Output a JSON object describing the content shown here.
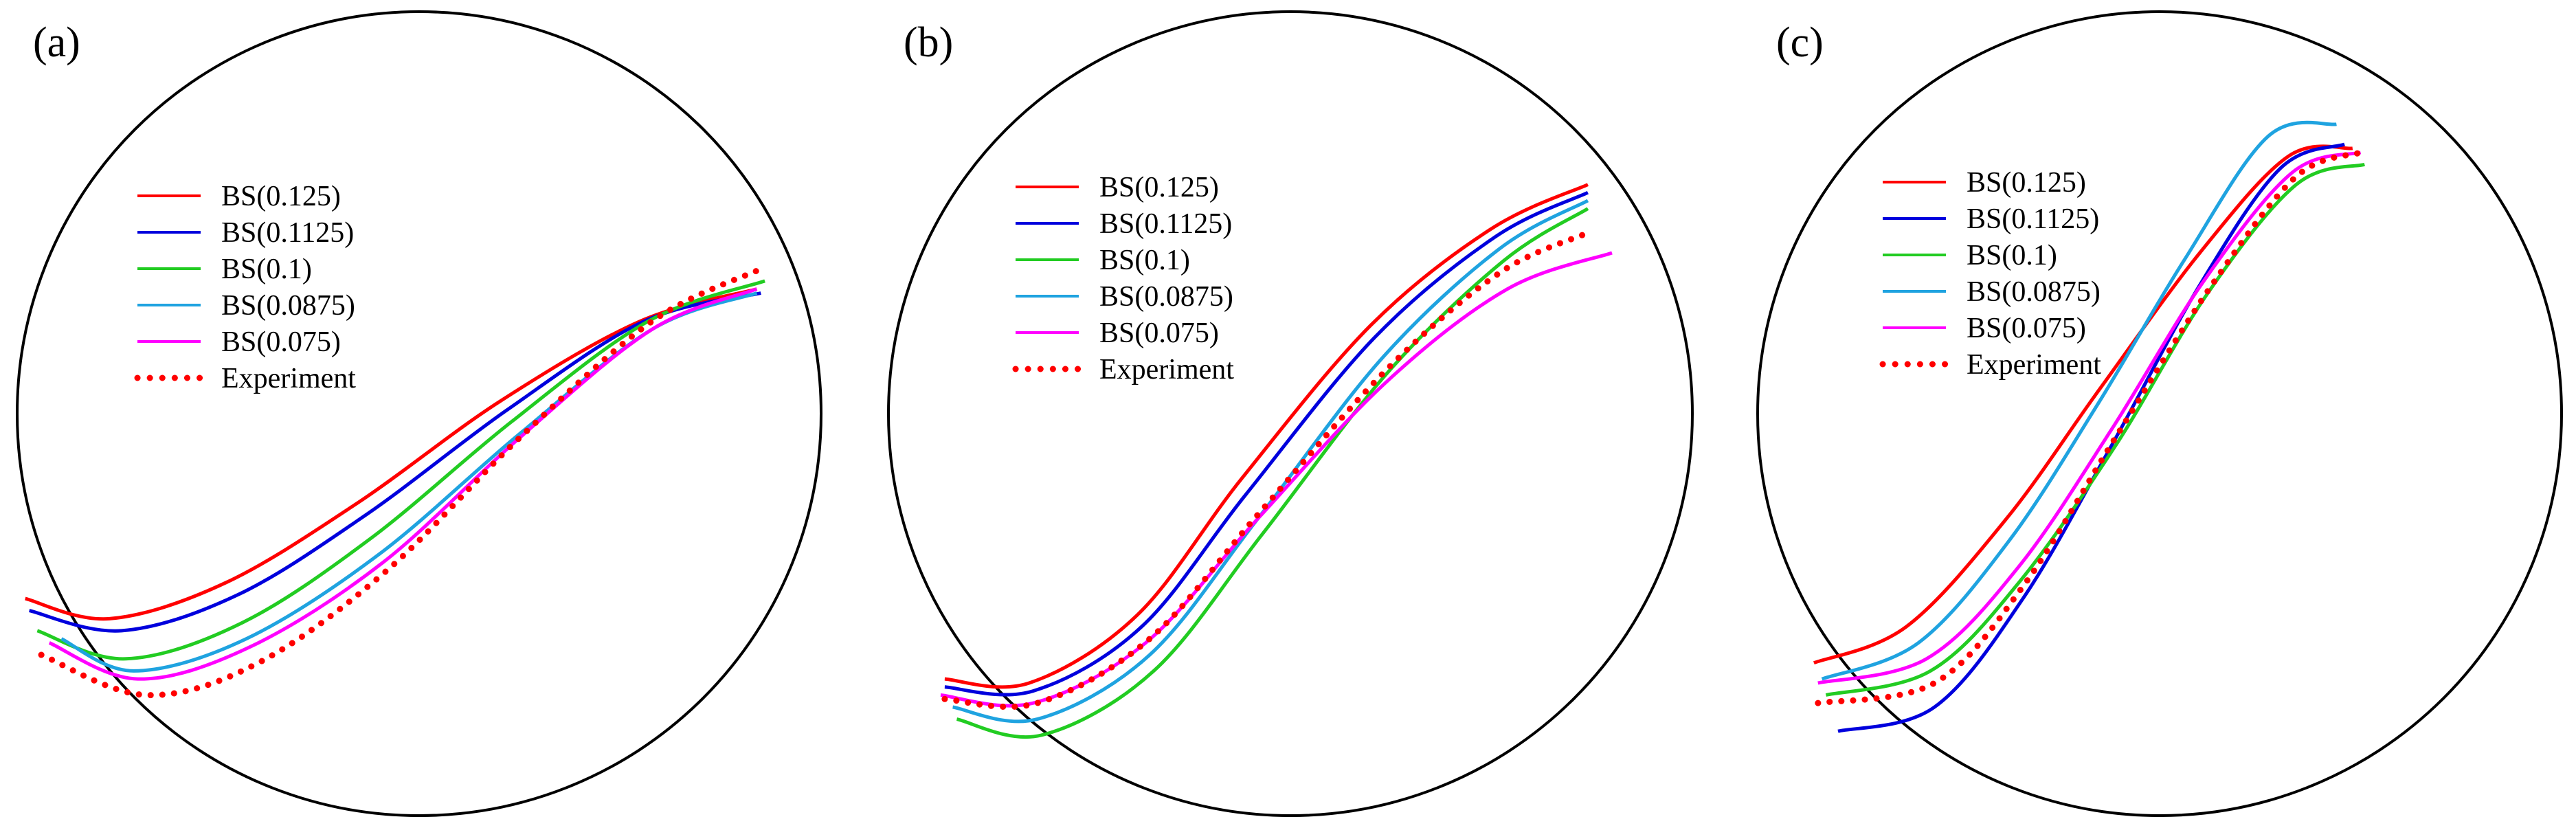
{
  "chart_data": [
    {
      "type": "line",
      "panel_label": "(a)",
      "legend": [
        "BS(0.125)",
        "BS(0.1125)",
        "BS(0.1)",
        "BS(0.0875)",
        "BS(0.075)",
        "Experiment"
      ],
      "series": [
        {
          "name": "BS(0.125)",
          "color": "#ff0000",
          "style": "solid",
          "points": [
            [
              -0.98,
              -0.46
            ],
            [
              -0.77,
              -0.51
            ],
            [
              -0.48,
              -0.42
            ],
            [
              -0.15,
              -0.22
            ],
            [
              0.2,
              0.03
            ],
            [
              0.55,
              0.23
            ],
            [
              0.84,
              0.31
            ]
          ]
        },
        {
          "name": "BS(0.1125)",
          "color": "#0000dd",
          "style": "solid",
          "points": [
            [
              -0.97,
              -0.49
            ],
            [
              -0.74,
              -0.54
            ],
            [
              -0.45,
              -0.45
            ],
            [
              -0.13,
              -0.25
            ],
            [
              0.22,
              0.01
            ],
            [
              0.56,
              0.23
            ],
            [
              0.85,
              0.3
            ]
          ]
        },
        {
          "name": "BS(0.1)",
          "color": "#22cc22",
          "style": "solid",
          "points": [
            [
              -0.95,
              -0.54
            ],
            [
              -0.73,
              -0.61
            ],
            [
              -0.44,
              -0.52
            ],
            [
              -0.12,
              -0.31
            ],
            [
              0.23,
              -0.02
            ],
            [
              0.57,
              0.23
            ],
            [
              0.86,
              0.33
            ]
          ]
        },
        {
          "name": "BS(0.0875)",
          "color": "#1fa3e0",
          "style": "solid",
          "points": [
            [
              -0.89,
              -0.56
            ],
            [
              -0.71,
              -0.64
            ],
            [
              -0.43,
              -0.56
            ],
            [
              -0.1,
              -0.35
            ],
            [
              0.25,
              -0.05
            ],
            [
              0.58,
              0.21
            ],
            [
              0.84,
              0.3
            ]
          ]
        },
        {
          "name": "BS(0.075)",
          "color": "#ff00ff",
          "style": "solid",
          "points": [
            [
              -0.92,
              -0.57
            ],
            [
              -0.7,
              -0.66
            ],
            [
              -0.42,
              -0.58
            ],
            [
              -0.09,
              -0.37
            ],
            [
              0.25,
              -0.06
            ],
            [
              0.58,
              0.21
            ],
            [
              0.84,
              0.31
            ]
          ]
        },
        {
          "name": "Experiment",
          "color": "#ff0000",
          "style": "dotted",
          "points": [
            [
              -0.94,
              -0.6
            ],
            [
              -0.68,
              -0.7
            ],
            [
              -0.4,
              -0.62
            ],
            [
              -0.08,
              -0.39
            ],
            [
              0.25,
              -0.06
            ],
            [
              0.58,
              0.23
            ],
            [
              0.85,
              0.36
            ]
          ]
        }
      ]
    },
    {
      "type": "line",
      "panel_label": "(b)",
      "legend": [
        "BS(0.125)",
        "BS(0.1125)",
        "BS(0.1)",
        "BS(0.0875)",
        "BS(0.075)",
        "Experiment"
      ],
      "series": [
        {
          "name": "BS(0.125)",
          "color": "#ff0000",
          "style": "solid",
          "points": [
            [
              -0.86,
              -0.66
            ],
            [
              -0.65,
              -0.67
            ],
            [
              -0.38,
              -0.5
            ],
            [
              -0.12,
              -0.16
            ],
            [
              0.2,
              0.22
            ],
            [
              0.5,
              0.46
            ],
            [
              0.74,
              0.57
            ]
          ]
        },
        {
          "name": "BS(0.1125)",
          "color": "#0000dd",
          "style": "solid",
          "points": [
            [
              -0.86,
              -0.68
            ],
            [
              -0.64,
              -0.69
            ],
            [
              -0.37,
              -0.53
            ],
            [
              -0.11,
              -0.2
            ],
            [
              0.21,
              0.19
            ],
            [
              0.51,
              0.44
            ],
            [
              0.74,
              0.55
            ]
          ]
        },
        {
          "name": "BS(0.1)",
          "color": "#22cc22",
          "style": "solid",
          "points": [
            [
              -0.83,
              -0.76
            ],
            [
              -0.62,
              -0.8
            ],
            [
              -0.34,
              -0.64
            ],
            [
              -0.07,
              -0.3
            ],
            [
              0.24,
              0.1
            ],
            [
              0.53,
              0.38
            ],
            [
              0.74,
              0.51
            ]
          ]
        },
        {
          "name": "BS(0.0875)",
          "color": "#1fa3e0",
          "style": "solid",
          "points": [
            [
              -0.84,
              -0.73
            ],
            [
              -0.63,
              -0.76
            ],
            [
              -0.35,
              -0.6
            ],
            [
              -0.08,
              -0.26
            ],
            [
              0.23,
              0.14
            ],
            [
              0.52,
              0.41
            ],
            [
              0.74,
              0.53
            ]
          ]
        },
        {
          "name": "BS(0.075)",
          "color": "#ff00ff",
          "style": "solid",
          "points": [
            [
              -0.87,
              -0.7
            ],
            [
              -0.64,
              -0.72
            ],
            [
              -0.36,
              -0.57
            ],
            [
              -0.08,
              -0.26
            ],
            [
              0.24,
              0.08
            ],
            [
              0.54,
              0.31
            ],
            [
              0.8,
              0.4
            ]
          ]
        },
        {
          "name": "Experiment",
          "color": "#ff0000",
          "style": "dotted",
          "points": [
            [
              -0.86,
              -0.71
            ],
            [
              -0.63,
              -0.72
            ],
            [
              -0.35,
              -0.56
            ],
            [
              -0.08,
              -0.25
            ],
            [
              0.24,
              0.11
            ],
            [
              0.52,
              0.35
            ],
            [
              0.74,
              0.45
            ]
          ]
        }
      ]
    },
    {
      "type": "line",
      "panel_label": "(c)",
      "legend": [
        "BS(0.125)",
        "BS(0.1125)",
        "BS(0.1)",
        "BS(0.0875)",
        "BS(0.075)",
        "Experiment"
      ],
      "series": [
        {
          "name": "BS(0.125)",
          "color": "#ff0000",
          "style": "solid",
          "points": [
            [
              -0.86,
              -0.62
            ],
            [
              -0.63,
              -0.53
            ],
            [
              -0.38,
              -0.26
            ],
            [
              -0.15,
              0.06
            ],
            [
              0.1,
              0.4
            ],
            [
              0.32,
              0.64
            ],
            [
              0.48,
              0.66
            ]
          ]
        },
        {
          "name": "BS(0.1125)",
          "color": "#0000dd",
          "style": "solid",
          "points": [
            [
              -0.8,
              -0.79
            ],
            [
              -0.56,
              -0.73
            ],
            [
              -0.34,
              -0.46
            ],
            [
              -0.12,
              -0.08
            ],
            [
              0.1,
              0.32
            ],
            [
              0.3,
              0.61
            ],
            [
              0.46,
              0.67
            ]
          ]
        },
        {
          "name": "BS(0.1)",
          "color": "#22cc22",
          "style": "solid",
          "points": [
            [
              -0.83,
              -0.7
            ],
            [
              -0.57,
              -0.64
            ],
            [
              -0.35,
              -0.42
            ],
            [
              -0.11,
              -0.08
            ],
            [
              0.12,
              0.3
            ],
            [
              0.34,
              0.57
            ],
            [
              0.51,
              0.62
            ]
          ]
        },
        {
          "name": "BS(0.0875)",
          "color": "#1fa3e0",
          "style": "solid",
          "points": [
            [
              -0.84,
              -0.66
            ],
            [
              -0.6,
              -0.57
            ],
            [
              -0.37,
              -0.31
            ],
            [
              -0.15,
              0.03
            ],
            [
              0.06,
              0.38
            ],
            [
              0.27,
              0.69
            ],
            [
              0.44,
              0.72
            ]
          ]
        },
        {
          "name": "BS(0.075)",
          "color": "#ff00ff",
          "style": "solid",
          "points": [
            [
              -0.85,
              -0.67
            ],
            [
              -0.58,
              -0.61
            ],
            [
              -0.35,
              -0.38
            ],
            [
              -0.12,
              -0.04
            ],
            [
              0.11,
              0.33
            ],
            [
              0.33,
              0.6
            ],
            [
              0.5,
              0.65
            ]
          ]
        },
        {
          "name": "Experiment",
          "color": "#ff0000",
          "style": "dotted",
          "points": [
            [
              -0.85,
              -0.72
            ],
            [
              -0.56,
              -0.67
            ],
            [
              -0.34,
              -0.43
            ],
            [
              -0.11,
              -0.06
            ],
            [
              0.13,
              0.32
            ],
            [
              0.34,
              0.59
            ],
            [
              0.5,
              0.65
            ]
          ]
        }
      ]
    }
  ]
}
